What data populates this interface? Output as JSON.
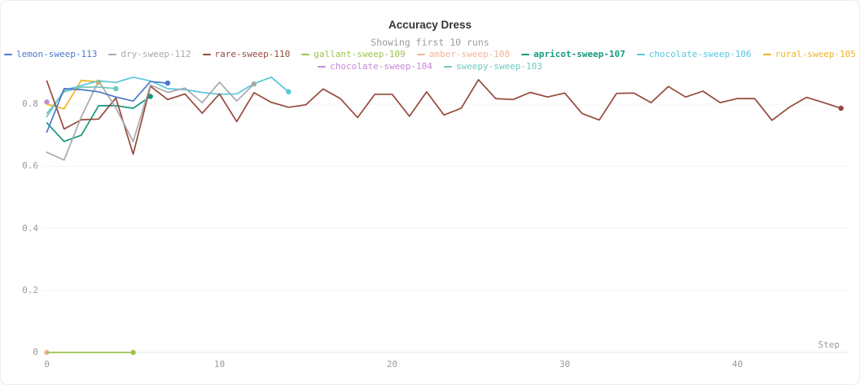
{
  "chart_data": {
    "type": "line",
    "title": "Accuracy Dress",
    "subtitle": "Showing first 10 runs",
    "xlabel": "Step",
    "ylabel": "",
    "x_ticks": [
      0,
      10,
      20,
      30,
      40
    ],
    "y_ticks": [
      0,
      0.2,
      0.4,
      0.6,
      0.8
    ],
    "xlim": [
      0,
      46.5
    ],
    "ylim": [
      0,
      0.905
    ],
    "grid": "horizontal-only",
    "legend_position": "top",
    "legend_split": 8,
    "series": [
      {
        "name": "lemon-sweep-113",
        "color": "#4D79C8",
        "bold_label": false,
        "end_dot": true,
        "values": [
          0.71,
          0.85,
          0.847,
          0.84,
          0.823,
          0.81,
          0.873,
          0.868
        ]
      },
      {
        "name": "dry-sweep-112",
        "color": "#A8A9AC",
        "bold_label": false,
        "end_dot": true,
        "values": [
          0.645,
          0.62,
          0.76,
          0.875,
          0.788,
          0.68,
          0.862,
          0.838,
          0.852,
          0.805,
          0.871,
          0.81,
          0.865
        ]
      },
      {
        "name": "rare-sweep-110",
        "color": "#96493B",
        "bold_label": false,
        "end_dot": true,
        "values": [
          0.875,
          0.72,
          0.75,
          0.752,
          0.82,
          0.639,
          0.858,
          0.815,
          0.833,
          0.771,
          0.833,
          0.744,
          0.837,
          0.806,
          0.79,
          0.798,
          0.849,
          0.818,
          0.757,
          0.832,
          0.832,
          0.761,
          0.84,
          0.765,
          0.787,
          0.879,
          0.818,
          0.815,
          0.838,
          0.823,
          0.836,
          0.77,
          0.749,
          0.835,
          0.836,
          0.805,
          0.857,
          0.823,
          0.842,
          0.805,
          0.818,
          0.818,
          0.748,
          0.79,
          0.822,
          0.805,
          0.787
        ]
      },
      {
        "name": "gallant-sweep-109",
        "color": "#9DC34F",
        "bold_label": false,
        "end_dot": true,
        "values": [
          0,
          0,
          0,
          0,
          0,
          0
        ]
      },
      {
        "name": "amber-sweep-108",
        "color": "#F3B49A",
        "bold_label": false,
        "end_dot": true,
        "values": [
          0
        ]
      },
      {
        "name": "apricot-sweep-107",
        "color": "#16997F",
        "bold_label": true,
        "end_dot": true,
        "values": [
          0.74,
          0.68,
          0.7,
          0.795,
          0.795,
          0.787,
          0.825
        ]
      },
      {
        "name": "chocolate-sweep-106",
        "color": "#58C7DC",
        "bold_label": false,
        "end_dot": true,
        "values": [
          0.76,
          0.845,
          0.86,
          0.875,
          0.87,
          0.887,
          0.875,
          0.85,
          0.847,
          0.838,
          0.832,
          0.833,
          0.866,
          0.887,
          0.84
        ]
      },
      {
        "name": "rural-sweep-105",
        "color": "#EFB41F",
        "bold_label": false,
        "end_dot": true,
        "values": [
          0.8,
          0.785,
          0.877,
          0.871
        ]
      },
      {
        "name": "chocolate-sweep-104",
        "color": "#C489D9",
        "bold_label": false,
        "end_dot": true,
        "values": [
          0.807
        ]
      },
      {
        "name": "sweepy-sweep-103",
        "color": "#70C9BE",
        "bold_label": false,
        "end_dot": true,
        "values": [
          0.77,
          0.84,
          0.855,
          0.855,
          0.85
        ]
      }
    ]
  }
}
